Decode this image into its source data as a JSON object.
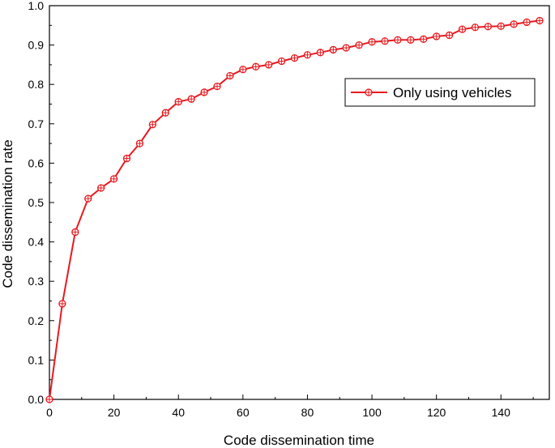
{
  "chart_data": {
    "type": "line",
    "xlabel": "Code dissemination time",
    "ylabel": "Code dissemination rate",
    "xlim": [
      0,
      155
    ],
    "ylim": [
      0,
      1.0
    ],
    "xticks": [
      0,
      20,
      40,
      60,
      80,
      100,
      120,
      140
    ],
    "yticks": [
      0.0,
      0.1,
      0.2,
      0.3,
      0.4,
      0.5,
      0.6,
      0.7,
      0.8,
      0.9,
      1.0
    ],
    "xtick_labels": [
      "0",
      "20",
      "40",
      "60",
      "80",
      "100",
      "120",
      "140"
    ],
    "ytick_labels": [
      "0.0",
      "0.1",
      "0.2",
      "0.3",
      "0.4",
      "0.5",
      "0.6",
      "0.7",
      "0.8",
      "0.9",
      "1.0"
    ],
    "legend_position": "top-right",
    "grid": false,
    "series": [
      {
        "name": "Only using vehicles",
        "color": "#e8191f",
        "marker": "crossed-circle",
        "x": [
          0,
          4,
          8,
          12,
          16,
          20,
          24,
          28,
          32,
          36,
          40,
          44,
          48,
          52,
          56,
          60,
          64,
          68,
          72,
          76,
          80,
          84,
          88,
          92,
          96,
          100,
          104,
          108,
          112,
          116,
          120,
          124,
          128,
          132,
          136,
          140,
          144,
          148,
          152
        ],
        "y": [
          0.0,
          0.243,
          0.425,
          0.51,
          0.537,
          0.56,
          0.612,
          0.65,
          0.698,
          0.728,
          0.756,
          0.763,
          0.78,
          0.795,
          0.822,
          0.838,
          0.845,
          0.85,
          0.859,
          0.867,
          0.875,
          0.881,
          0.888,
          0.893,
          0.9,
          0.908,
          0.91,
          0.913,
          0.913,
          0.915,
          0.922,
          0.925,
          0.94,
          0.945,
          0.947,
          0.948,
          0.953,
          0.958,
          0.962
        ]
      }
    ]
  }
}
